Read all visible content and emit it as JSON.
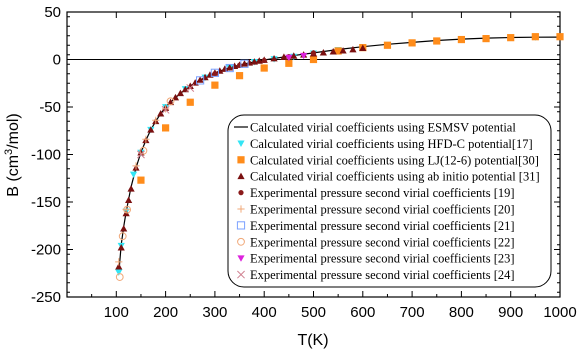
{
  "chart_data": {
    "type": "scatter",
    "xlabel": "T(K)",
    "ylabel_main": "B (cm",
    "ylabel_sup": "3",
    "ylabel_tail": "/mol)",
    "xlim": [
      0,
      1000
    ],
    "ylim": [
      -250,
      50
    ],
    "x_ticks": [
      100,
      200,
      300,
      400,
      500,
      600,
      700,
      800,
      900,
      1000
    ],
    "x_tick_labels": [
      "100",
      "200",
      "300",
      "400",
      "500",
      "600",
      "700",
      "800",
      "900",
      "1000"
    ],
    "y_ticks": [
      50,
      0,
      -50,
      -100,
      -150,
      -200,
      -250
    ],
    "y_tick_labels": [
      "50",
      "0",
      "-50",
      "-100",
      "-150",
      "-200",
      "-250"
    ],
    "legend_position": "bottom-right",
    "zero_line": true,
    "series": [
      {
        "name": "Calculated virial coefficients using ESMSV potential",
        "marker": "line",
        "color": "#000000",
        "x": [
          105,
          110,
          115,
          120,
          130,
          140,
          150,
          160,
          170,
          180,
          190,
          200,
          220,
          240,
          260,
          280,
          300,
          330,
          360,
          400,
          450,
          500,
          550,
          600,
          650,
          700,
          750,
          800,
          850,
          900,
          950,
          1000
        ],
        "y": [
          -225,
          -195,
          -176,
          -160,
          -134,
          -114,
          -98,
          -85,
          -74,
          -65,
          -57,
          -50.5,
          -40,
          -31.5,
          -24.5,
          -18.8,
          -14,
          -8.5,
          -4.5,
          -0.5,
          3.5,
          7,
          10.5,
          13.5,
          16,
          18,
          20,
          21.5,
          22.5,
          23.2,
          23.5,
          23.6
        ]
      },
      {
        "name": "Calculated virial coefficients using HFD-C potential[17]",
        "marker": "tri-down-cyan",
        "color": "#33e5f5",
        "x": [
          105,
          110,
          120,
          135,
          150,
          170,
          200,
          240,
          280,
          330,
          380,
          420,
          460,
          500,
          550,
          600,
          650,
          700,
          750,
          800,
          850,
          900,
          950,
          1000
        ],
        "y": [
          -224,
          -196,
          -160,
          -121,
          -98,
          -74,
          -50,
          -31,
          -19,
          -8.5,
          -2.5,
          0.5,
          3,
          6.5,
          10,
          13,
          15.5,
          17.5,
          19.5,
          21,
          22,
          23,
          23.5,
          24
        ]
      },
      {
        "name": "Calculated virial coefficients using LJ(12-6) potential[30]",
        "marker": "square",
        "color": "#ff8c1a",
        "x": [
          150,
          200,
          250,
          300,
          350,
          400,
          450,
          500,
          550,
          600,
          650,
          700,
          750,
          800,
          850,
          900,
          950,
          1000
        ],
        "y": [
          -127,
          -72,
          -45,
          -27,
          -17,
          -9,
          -4,
          0,
          9,
          12.5,
          15,
          17.5,
          19.5,
          21,
          22,
          23,
          24,
          24
        ]
      },
      {
        "name": "Calculated virial coefficients using ab initio potential [31]",
        "marker": "triangle",
        "color": "#7a1010",
        "x": [
          105,
          110,
          115,
          120,
          125,
          130,
          140,
          150,
          160,
          170,
          180,
          190,
          200,
          210,
          220,
          230,
          240,
          250,
          260,
          270,
          280,
          290,
          300,
          310,
          320,
          330,
          340,
          350,
          360,
          370,
          380,
          390,
          400,
          420,
          440,
          460,
          480,
          500,
          520,
          540,
          560,
          580,
          600
        ],
        "y": [
          -218,
          -198,
          -178,
          -162,
          -148,
          -136,
          -114,
          -98,
          -85,
          -74,
          -65,
          -57,
          -51,
          -45,
          -40,
          -35.5,
          -31.5,
          -28,
          -24.5,
          -21.5,
          -18.8,
          -16.2,
          -14,
          -12,
          -10,
          -8.5,
          -7,
          -5.8,
          -4.5,
          -3.4,
          -2.4,
          -1.4,
          -0.5,
          1,
          2.6,
          3.8,
          5,
          6.2,
          7.2,
          8.3,
          9.3,
          10.5,
          12
        ]
      },
      {
        "name": "Experimental pressure second virial coefficients [19]",
        "marker": "circle-filled",
        "color": "#8b1a1a",
        "x": [
          300,
          350,
          400,
          450,
          500
        ],
        "y": [
          -15,
          -6,
          -1,
          3,
          7
        ]
      },
      {
        "name": "Experimental pressure second virial coefficients [20]",
        "marker": "plus",
        "color": "#f0a878",
        "x": [
          105,
          120,
          140,
          160,
          180,
          200
        ],
        "y": [
          -213,
          -158,
          -112,
          -84,
          -64,
          -52
        ]
      },
      {
        "name": "Experimental pressure second virial coefficients [21]",
        "marker": "square-open",
        "color": "#7aa0ff",
        "x": [
          270,
          300,
          330,
          360
        ],
        "y": [
          -22,
          -14,
          -9,
          -4.5
        ]
      },
      {
        "name": "Experimental pressure second virial coefficients [22]",
        "marker": "circle-open",
        "color": "#f0a878",
        "x": [
          107,
          113,
          122,
          155,
          210
        ],
        "y": [
          -229,
          -186,
          -158,
          -96,
          -44
        ]
      },
      {
        "name": "Experimental pressure second virial coefficients [23]",
        "marker": "tri-down-magenta",
        "color": "#dd22dd",
        "x": [
          450,
          480
        ],
        "y": [
          2,
          4
        ]
      },
      {
        "name": "Experimental pressure second virial coefficients [24]",
        "marker": "x",
        "color": "#d08090",
        "x": [
          150,
          200,
          250
        ],
        "y": [
          -100,
          -53,
          -30
        ]
      }
    ]
  }
}
